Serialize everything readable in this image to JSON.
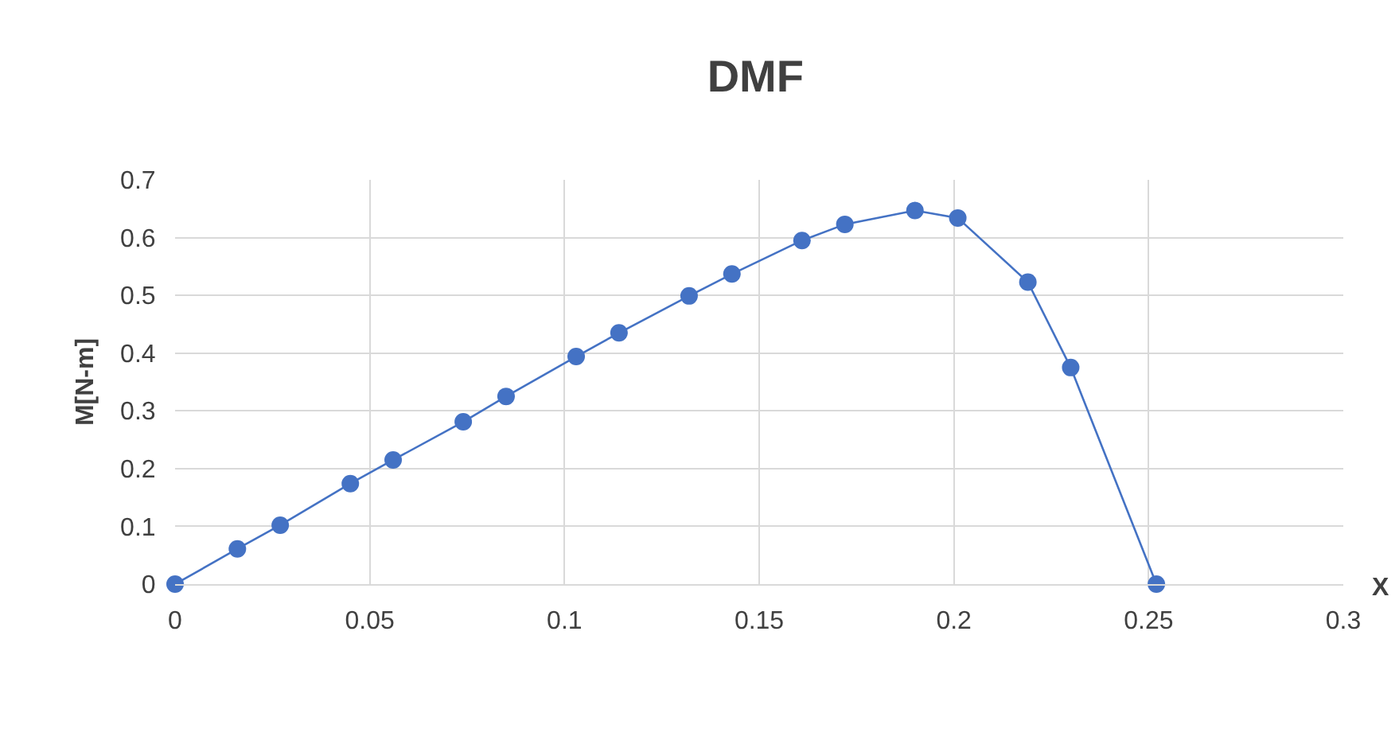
{
  "chart_data": {
    "type": "line",
    "title": "DMF",
    "xlabel": "X",
    "ylabel": "M[N-m]",
    "x": [
      0,
      0.016,
      0.027,
      0.045,
      0.056,
      0.074,
      0.085,
      0.103,
      0.114,
      0.132,
      0.143,
      0.161,
      0.172,
      0.19,
      0.201,
      0.219,
      0.23,
      0.252
    ],
    "series": [
      {
        "color": "#4472c4",
        "values": [
          0,
          0.061,
          0.102,
          0.174,
          0.215,
          0.281,
          0.325,
          0.394,
          0.435,
          0.499,
          0.537,
          0.595,
          0.623,
          0.647,
          0.634,
          0.523,
          0.375,
          0
        ]
      }
    ],
    "xlim": [
      0,
      0.3
    ],
    "xticks": [
      0,
      0.05,
      0.1,
      0.15,
      0.2,
      0.25,
      0.3
    ],
    "ylim": [
      0,
      0.7
    ],
    "yticks": [
      0,
      0.1,
      0.2,
      0.3,
      0.4,
      0.5,
      0.6,
      0.7
    ],
    "grid": true,
    "marker": "circle",
    "line_style": "solid"
  }
}
